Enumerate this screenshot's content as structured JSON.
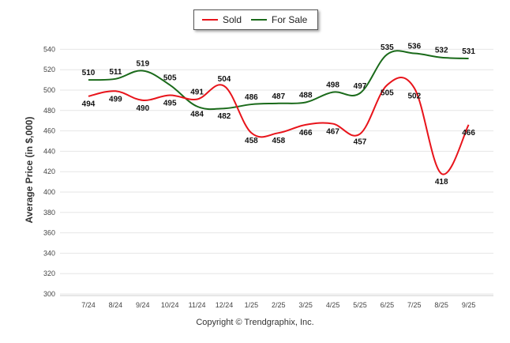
{
  "chart_data": {
    "type": "line",
    "title": "",
    "xlabel": "",
    "ylabel": "Average Price (in $,000)",
    "ylim": [
      300,
      545
    ],
    "yticks": [
      300,
      320,
      340,
      360,
      380,
      400,
      420,
      440,
      460,
      480,
      500,
      520,
      540
    ],
    "grid": true,
    "legend_position": "top-center",
    "categories": [
      "7/24",
      "8/24",
      "9/24",
      "10/24",
      "11/24",
      "12/24",
      "1/25",
      "2/25",
      "3/25",
      "4/25",
      "5/25",
      "6/25",
      "7/25",
      "8/25",
      "9/25"
    ],
    "series": [
      {
        "name": "Sold",
        "color": "#e8141b",
        "values": [
          494,
          499,
          490,
          495,
          491,
          504,
          458,
          458,
          466,
          467,
          457,
          505,
          502,
          418,
          466
        ]
      },
      {
        "name": "For Sale",
        "color": "#1a6a1a",
        "values": [
          510,
          511,
          519,
          505,
          484,
          482,
          486,
          487,
          488,
          498,
          497,
          535,
          536,
          532,
          531
        ]
      }
    ]
  },
  "legend": {
    "sold_label": "Sold",
    "for_sale_label": "For Sale"
  },
  "copyright": "Copyright © Trendgraphix, Inc."
}
